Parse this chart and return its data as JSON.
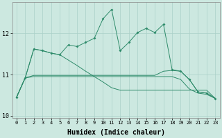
{
  "xlabel": "Humidex (Indice chaleur)",
  "x": [
    0,
    1,
    2,
    3,
    4,
    5,
    6,
    7,
    8,
    9,
    10,
    11,
    12,
    13,
    14,
    15,
    16,
    17,
    18,
    19,
    20,
    21,
    22,
    23
  ],
  "series1_jagged": [
    10.45,
    10.92,
    11.62,
    11.58,
    11.52,
    11.48,
    11.72,
    11.68,
    11.78,
    11.88,
    12.35,
    12.58,
    11.58,
    11.78,
    12.02,
    12.12,
    12.02,
    12.22,
    11.12,
    11.08,
    10.88,
    10.58,
    10.55,
    10.42
  ],
  "series2_diagonal": [
    10.45,
    10.92,
    11.62,
    11.58,
    11.52,
    11.48,
    11.35,
    11.22,
    11.08,
    10.95,
    10.82,
    10.68,
    10.62,
    10.62,
    10.62,
    10.62,
    10.62,
    10.62,
    10.62,
    10.62,
    10.62,
    10.62,
    10.62,
    10.42
  ],
  "series3_flat_high": [
    10.45,
    10.92,
    10.98,
    10.98,
    10.98,
    10.98,
    10.98,
    10.98,
    10.98,
    10.98,
    10.98,
    10.98,
    10.98,
    10.98,
    10.98,
    10.98,
    10.98,
    11.08,
    11.1,
    11.08,
    10.88,
    10.58,
    10.55,
    10.42
  ],
  "series4_flat_low": [
    10.45,
    10.92,
    10.95,
    10.95,
    10.95,
    10.95,
    10.95,
    10.95,
    10.95,
    10.95,
    10.95,
    10.95,
    10.95,
    10.95,
    10.95,
    10.95,
    10.95,
    10.95,
    10.95,
    10.88,
    10.65,
    10.55,
    10.52,
    10.42
  ],
  "line_color": "#2e8b6a",
  "bg_color": "#cce8e0",
  "grid_color": "#aad0c8",
  "ylim": [
    9.95,
    12.75
  ],
  "yticks": [
    10,
    11,
    12
  ],
  "xlim": [
    -0.5,
    23.5
  ],
  "axis_fontsize": 7
}
